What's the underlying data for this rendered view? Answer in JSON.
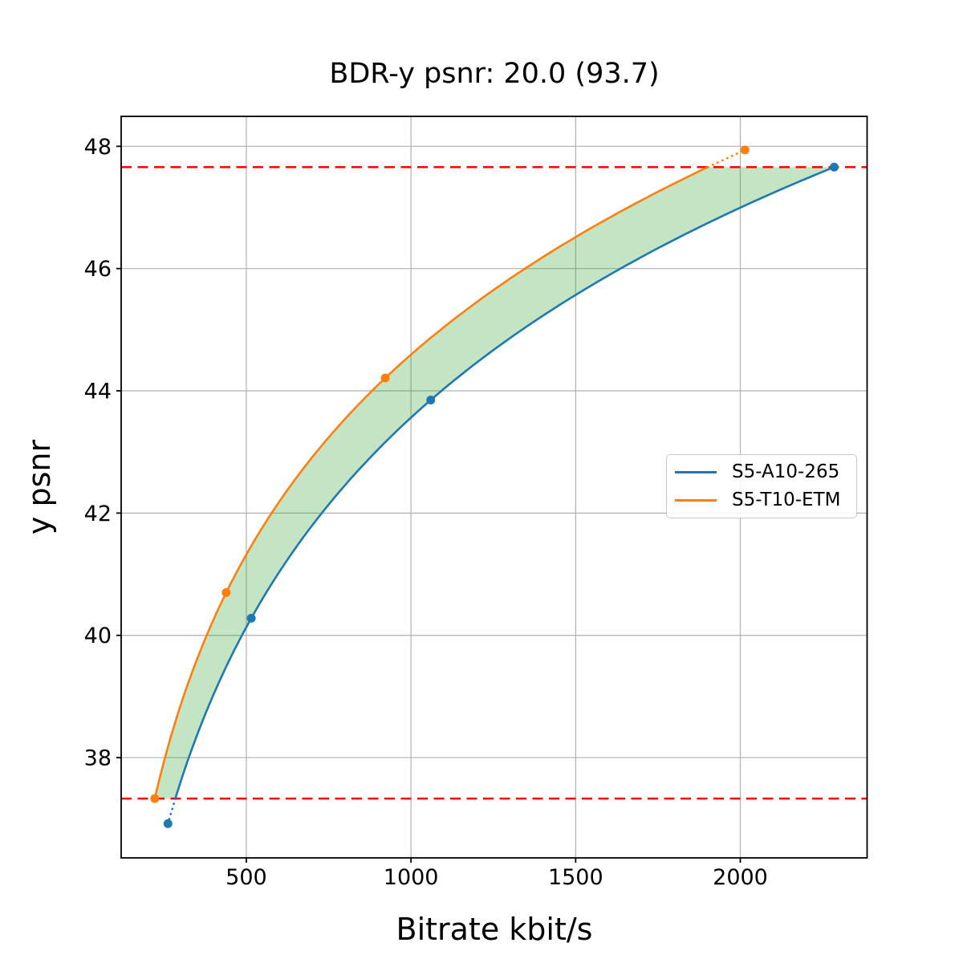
{
  "chart_data": {
    "type": "line",
    "title": "BDR-y psnr: 20.0 (93.7)",
    "xlabel": "Bitrate kbit/s",
    "ylabel": "y psnr",
    "xlim": [
      120,
      2385
    ],
    "ylim": [
      36.36,
      48.49
    ],
    "xticks": [
      500,
      1000,
      1500,
      2000
    ],
    "yticks": [
      38,
      40,
      42,
      44,
      46,
      48
    ],
    "grid": true,
    "legend": {
      "position": "center right",
      "entries": [
        "S5-A10-265",
        "S5-T10-ETM"
      ]
    },
    "series": [
      {
        "name": "S5-A10-265",
        "color": "#1f77b4",
        "marker": "circle",
        "points_bitrate_psnr": [
          [
            262,
            36.92
          ],
          [
            515,
            40.28
          ],
          [
            1060,
            43.85
          ],
          [
            2285,
            47.66
          ]
        ]
      },
      {
        "name": "S5-T10-ETM",
        "color": "#ff7f0e",
        "marker": "circle",
        "points_bitrate_psnr": [
          [
            222,
            37.33
          ],
          [
            439,
            40.7
          ],
          [
            922,
            44.21
          ],
          [
            2014,
            47.94
          ]
        ]
      }
    ],
    "interpolation": "cubic log10(bitrate) vs psnr",
    "overlap_psnr_range": [
      37.33,
      47.66
    ],
    "hlines": {
      "values": [
        37.33,
        47.66
      ],
      "color": "#ff0000",
      "style": "dashed"
    },
    "fill_between": {
      "color": "#2ca02c",
      "opacity": 0.28
    },
    "colors": {
      "grid": "#b0b0b0",
      "spine": "#000000",
      "background": "#ffffff",
      "text": "#000000"
    }
  }
}
